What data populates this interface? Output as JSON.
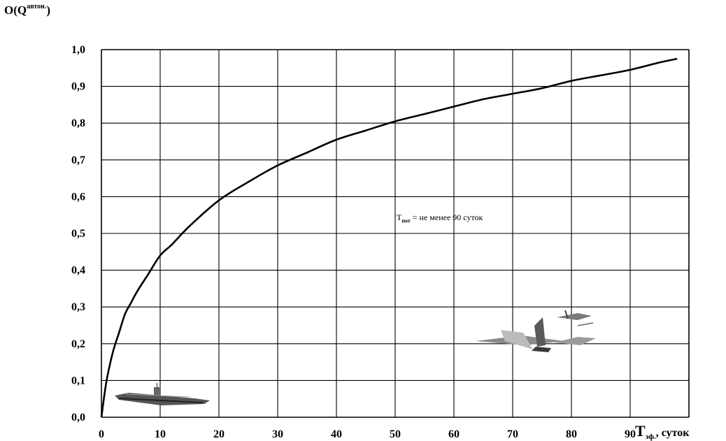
{
  "chart_data": {
    "type": "line",
    "ylabel_main": "O(Q",
    "ylabel_sup": "автон.",
    "ylabel_end": ")",
    "xlabel_main": "T",
    "xlabel_sub": "эф.",
    "xlabel_rest": ", суток",
    "annotation_main": "T",
    "annotation_sub": "пот",
    "annotation_rest": " = не менее 90 суток",
    "x_ticks": [
      "0",
      "10",
      "20",
      "30",
      "40",
      "50",
      "60",
      "70",
      "80",
      "90"
    ],
    "y_ticks": [
      "0,0",
      "0,1",
      "0,2",
      "0,3",
      "0,4",
      "0,5",
      "0,6",
      "0,7",
      "0,8",
      "0,9",
      "1,0"
    ],
    "xlim": [
      0,
      100
    ],
    "ylim": [
      0,
      1
    ],
    "grid": true,
    "series": [
      {
        "x": [
          0,
          0.5,
          1,
          2,
          3,
          4,
          5,
          6,
          8,
          10,
          12,
          15,
          20,
          25,
          30,
          35,
          40,
          45,
          50,
          55,
          60,
          65,
          70,
          75,
          80,
          85,
          90,
          95,
          98
        ],
        "y": [
          0,
          0.06,
          0.11,
          0.18,
          0.23,
          0.28,
          0.31,
          0.34,
          0.39,
          0.44,
          0.47,
          0.52,
          0.59,
          0.64,
          0.685,
          0.72,
          0.755,
          0.78,
          0.805,
          0.825,
          0.845,
          0.865,
          0.88,
          0.895,
          0.915,
          0.93,
          0.945,
          0.965,
          0.975
        ]
      }
    ]
  },
  "illustrations": [
    {
      "name": "ship-image"
    },
    {
      "name": "aircraft-image"
    }
  ]
}
